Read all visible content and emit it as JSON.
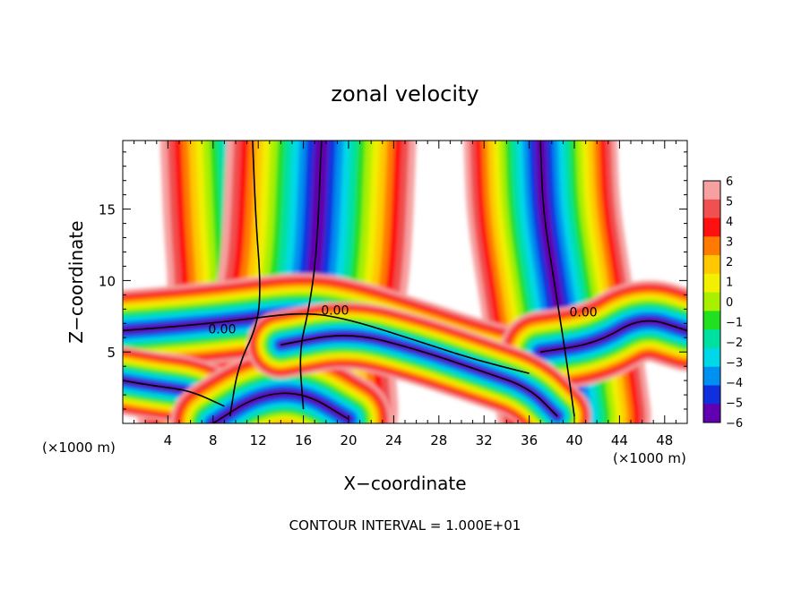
{
  "chart_data": {
    "type": "heatmap",
    "title": "zonal velocity",
    "xlabel": "X−coordinate",
    "ylabel": "Z−coordinate",
    "x_unit_left": "(×1000 m)",
    "x_unit_right": "(×1000 m)",
    "footer": "CONTOUR INTERVAL = 1.000E+01",
    "xlim": [
      0,
      50
    ],
    "ylim": [
      0,
      19.8
    ],
    "x_ticks": [
      4,
      8,
      12,
      16,
      20,
      24,
      28,
      32,
      36,
      40,
      44,
      48
    ],
    "x_tick_labels": [
      "4",
      "8",
      "12",
      "16",
      "20",
      "24",
      "28",
      "32",
      "36",
      "40",
      "44",
      "48"
    ],
    "y_ticks": [
      5,
      10,
      15
    ],
    "y_tick_labels": [
      "5",
      "10",
      "15"
    ],
    "contour_labels": [
      {
        "text": "0.00",
        "x": 8.8,
        "y": 6.3
      },
      {
        "text": "0.00",
        "x": 18.8,
        "y": 7.6
      },
      {
        "text": "0.00",
        "x": 40.8,
        "y": 7.5
      }
    ],
    "colorbar": {
      "levels": [
        6,
        5,
        4,
        3,
        2,
        1,
        0,
        -1,
        -2,
        -3,
        -4,
        -5,
        -6
      ],
      "labels": [
        "6",
        "5",
        "4",
        "3",
        "2",
        "1",
        "0",
        "−1",
        "−2",
        "−3",
        "−4",
        "−5",
        "−6"
      ],
      "colors": [
        "#f7a0a0",
        "#f05050",
        "#ff1010",
        "#ff7a00",
        "#ffc800",
        "#f0f000",
        "#a8f000",
        "#20e020",
        "#00e0a0",
        "#00d8e8",
        "#0090f0",
        "#1030e0",
        "#6000b0"
      ]
    },
    "bands": [
      {
        "name": "v-left",
        "half_width": [
          4.6,
          3.6
        ],
        "points": [
          [
            9.5,
            0.5
          ],
          [
            10.2,
            4
          ],
          [
            12,
            7
          ],
          [
            12.2,
            10
          ],
          [
            11.8,
            14
          ],
          [
            11.5,
            19.8
          ]
        ]
      },
      {
        "name": "v-mid",
        "half_width": [
          4.6,
          3.8
        ],
        "points": [
          [
            16,
            1
          ],
          [
            15.6,
            5
          ],
          [
            16.5,
            8
          ],
          [
            17.2,
            12
          ],
          [
            17.6,
            19.8
          ]
        ]
      },
      {
        "name": "v-right",
        "half_width": [
          3.8,
          3.0
        ],
        "points": [
          [
            40,
            0.5
          ],
          [
            39.2,
            5
          ],
          [
            38.2,
            10
          ],
          [
            37.2,
            15
          ],
          [
            37,
            19.8
          ]
        ]
      },
      {
        "name": "h-left",
        "half_width": [
          2.0,
          1.6
        ],
        "points": [
          [
            0,
            6.5
          ],
          [
            5,
            6.8
          ],
          [
            10,
            7.2
          ],
          [
            16,
            7.8
          ],
          [
            20,
            7.3
          ],
          [
            26,
            5.8
          ],
          [
            31,
            4.5
          ],
          [
            36,
            3.5
          ]
        ]
      },
      {
        "name": "h-right",
        "half_width": [
          2.0,
          1.6
        ],
        "points": [
          [
            37,
            5
          ],
          [
            42,
            5.6
          ],
          [
            46,
            7.5
          ],
          [
            50,
            6.5
          ]
        ]
      },
      {
        "name": "low-left",
        "half_width": [
          1.6,
          1.4
        ],
        "points": [
          [
            0,
            3
          ],
          [
            3,
            2.6
          ],
          [
            6,
            2.3
          ],
          [
            9,
            1.2
          ]
        ]
      },
      {
        "name": "bottom-arc",
        "half_width": [
          2.0,
          1.8
        ],
        "points": [
          [
            8,
            0
          ],
          [
            12,
            2.0
          ],
          [
            16,
            2.2
          ],
          [
            20,
            0.3
          ]
        ]
      },
      {
        "name": "lower-warm",
        "half_width": [
          1.6,
          1.4
        ],
        "points": [
          [
            14,
            5.5
          ],
          [
            20,
            6.4
          ],
          [
            26,
            5.2
          ],
          [
            32,
            3.6
          ],
          [
            36,
            2.5
          ],
          [
            38.5,
            0.5
          ]
        ]
      }
    ]
  }
}
